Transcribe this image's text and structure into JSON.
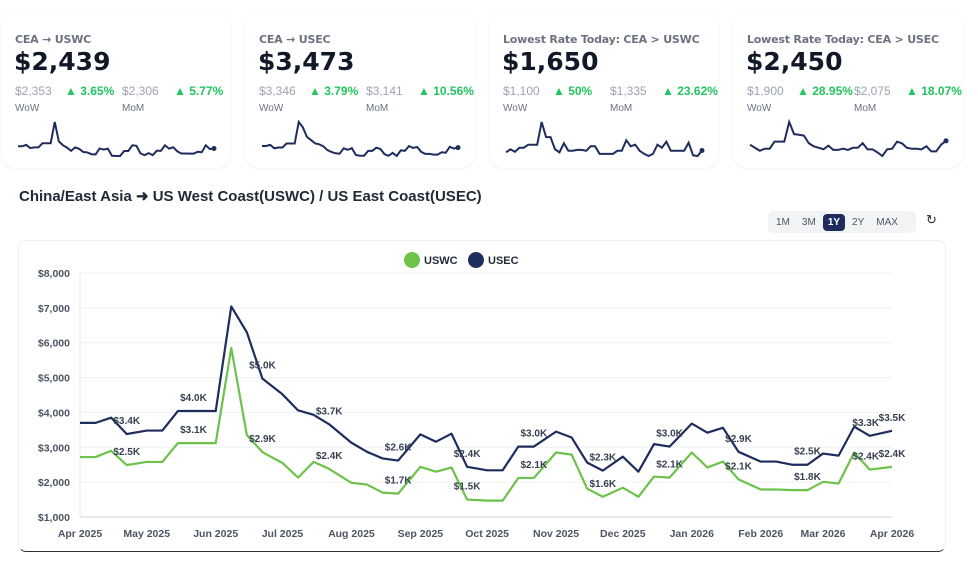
{
  "cards": [
    {
      "title": "CEA → USWC",
      "value": "$2,439",
      "wow_prev": "$2,353",
      "wow_change": "▲ 3.65%",
      "mom_prev": "$2,306",
      "mom_change": "▲ 5.77%",
      "wow_label": "WoW",
      "mom_label": "MoM",
      "sparkline": [
        2720,
        2720,
        2900,
        2490,
        2580,
        2580,
        3120,
        3120,
        3120,
        5850,
        3350,
        2860,
        2550,
        2130,
        2580,
        2380,
        1980,
        1930,
        1700,
        1670,
        2440,
        2300,
        2420,
        1500,
        1470,
        1470,
        2120,
        2120,
        2850,
        2790,
        1810,
        1580,
        1840,
        1580,
        2160,
        2130,
        2850,
        2420,
        2590,
        2080,
        1790,
        1790,
        1770,
        1770,
        2010,
        1960,
        2850,
        2360,
        2439
      ]
    },
    {
      "title": "CEA → USEC",
      "value": "$3,473",
      "wow_prev": "$3,346",
      "wow_change": "▲ 3.79%",
      "mom_prev": "$3,141",
      "mom_change": "▲ 10.56%",
      "wow_label": "WoW",
      "mom_label": "MoM",
      "sparkline": [
        3700,
        3700,
        3850,
        3380,
        3480,
        3480,
        4040,
        4040,
        4040,
        7040,
        6300,
        4970,
        4520,
        4060,
        3930,
        3660,
        3130,
        2870,
        2680,
        2620,
        3370,
        3160,
        3390,
        2440,
        2340,
        2340,
        3020,
        3020,
        3450,
        3280,
        2560,
        2330,
        2730,
        2300,
        3090,
        3020,
        3680,
        3420,
        3560,
        2870,
        2590,
        2590,
        2500,
        2500,
        2820,
        2760,
        3590,
        3330,
        3473
      ]
    },
    {
      "title": "Lowest Rate Today: CEA > USWC",
      "value": "$1,650",
      "wow_prev": "$1,100",
      "wow_change": "▲ 50%",
      "mom_prev": "$1,335",
      "mom_change": "▲ 23.62%",
      "wow_label": "WoW",
      "mom_label": "MoM",
      "sparkline": [
        1500,
        1750,
        1550,
        1880,
        1880,
        2130,
        2130,
        2130,
        4000,
        2750,
        2750,
        1750,
        1500,
        2250,
        1630,
        1630,
        1700,
        1700,
        1630,
        2000,
        2000,
        1380,
        1380,
        1380,
        1380,
        1630,
        1630,
        2500,
        2000,
        2130,
        1630,
        1380,
        1200,
        1380,
        2130,
        1880,
        2380,
        1630,
        1630,
        1630,
        1630,
        2300,
        1250,
        1200,
        1650
      ]
    },
    {
      "title": "Lowest Rate Today: CEA > USEC",
      "value": "$2,450",
      "wow_prev": "$1,900",
      "wow_change": "▲ 28.95%",
      "mom_prev": "$2,075",
      "mom_change": "▲ 18.07%",
      "wow_label": "WoW",
      "mom_label": "MoM",
      "sparkline": [
        2130,
        1880,
        1630,
        1800,
        1800,
        2380,
        2380,
        2380,
        4000,
        3000,
        2950,
        2880,
        2250,
        2000,
        1880,
        1750,
        2050,
        1700,
        1700,
        1800,
        1700,
        1880,
        1880,
        2250,
        1750,
        1750,
        1500,
        1200,
        1750,
        1800,
        2380,
        2250,
        1880,
        1800,
        1800,
        1750,
        2000,
        1580,
        1580,
        2130,
        2450
      ]
    }
  ],
  "section_title": "China/East Asia ➜ US West Coast(USWC) / US East Coast(USEC)",
  "range_buttons": [
    {
      "label": "1M",
      "active": false
    },
    {
      "label": "3M",
      "active": false
    },
    {
      "label": "1Y",
      "active": true
    },
    {
      "label": "2Y",
      "active": false
    },
    {
      "label": "MAX",
      "active": false
    }
  ],
  "reset_icon": "↻",
  "colors": {
    "uswc": "#6cc24a",
    "usec": "#1e2d5e",
    "active_range": "#1e2d5e",
    "up": "#22c55e"
  },
  "chart_data": {
    "type": "line",
    "legend": [
      "USWC",
      "USEC"
    ],
    "legend_placement": "top-center",
    "grid": true,
    "ylim": [
      1000,
      8000
    ],
    "yticks": [
      "$1,000",
      "$2,000",
      "$3,000",
      "$4,000",
      "$5,000",
      "$6,000",
      "$7,000",
      "$8,000"
    ],
    "xticks": [
      {
        "date": "2025-04-01",
        "label": "Apr 2025"
      },
      {
        "date": "2025-05-01",
        "label": "May 2025"
      },
      {
        "date": "2025-06-01",
        "label": "Jun 2025"
      },
      {
        "date": "2025-07-01",
        "label": "Jul 2025"
      },
      {
        "date": "2025-08-01",
        "label": "Aug 2025"
      },
      {
        "date": "2025-09-01",
        "label": "Sep 2025"
      },
      {
        "date": "2025-10-01",
        "label": "Oct 2025"
      },
      {
        "date": "2025-11-01",
        "label": "Nov 2025"
      },
      {
        "date": "2025-12-01",
        "label": "Dec 2025"
      },
      {
        "date": "2026-01-01",
        "label": "Jan 2026"
      },
      {
        "date": "2026-02-01",
        "label": "Feb 2026"
      },
      {
        "date": "2026-03-01",
        "label": "Mar 2026"
      },
      {
        "date": "2026-04-01",
        "label": "Apr 2026"
      }
    ],
    "x": [
      "2025-04-01",
      "2025-04-08",
      "2025-04-15",
      "2025-04-22",
      "2025-05-01",
      "2025-05-08",
      "2025-05-15",
      "2025-05-22",
      "2025-06-01",
      "2025-06-08",
      "2025-06-15",
      "2025-06-22",
      "2025-07-01",
      "2025-07-08",
      "2025-07-15",
      "2025-07-22",
      "2025-08-01",
      "2025-08-08",
      "2025-08-15",
      "2025-08-22",
      "2025-09-01",
      "2025-09-08",
      "2025-09-15",
      "2025-09-22",
      "2025-10-01",
      "2025-10-08",
      "2025-10-15",
      "2025-10-22",
      "2025-11-01",
      "2025-11-08",
      "2025-11-15",
      "2025-11-22",
      "2025-12-01",
      "2025-12-08",
      "2025-12-15",
      "2025-12-22",
      "2026-01-01",
      "2026-01-08",
      "2026-01-15",
      "2026-01-22",
      "2026-02-01",
      "2026-02-08",
      "2026-02-15",
      "2026-02-22",
      "2026-03-01",
      "2026-03-08",
      "2026-03-15",
      "2026-03-22",
      "2026-04-01"
    ],
    "series": [
      {
        "name": "USWC",
        "color": "#6cc24a",
        "values": [
          2720,
          2720,
          2900,
          2490,
          2580,
          2580,
          3120,
          3120,
          3120,
          5850,
          3350,
          2860,
          2550,
          2130,
          2580,
          2380,
          1980,
          1930,
          1700,
          1670,
          2440,
          2300,
          2420,
          1500,
          1470,
          1470,
          2120,
          2120,
          2850,
          2790,
          1810,
          1580,
          1840,
          1580,
          2160,
          2130,
          2850,
          2420,
          2590,
          2080,
          1790,
          1790,
          1770,
          1770,
          2010,
          1960,
          2850,
          2360,
          2439
        ],
        "data_labels": [
          "$2.5K",
          "$3.1K",
          "$2.9K",
          "$2.4K",
          "$1.7K",
          "$1.5K",
          "$2.1K",
          "$1.6K",
          "$2.1K",
          "$2.1K",
          "$1.8K",
          "$2.4K",
          "$2.4K"
        ]
      },
      {
        "name": "USEC",
        "color": "#1e2d5e",
        "values": [
          3700,
          3700,
          3850,
          3380,
          3480,
          3480,
          4040,
          4040,
          4040,
          7040,
          6300,
          4970,
          4520,
          4060,
          3930,
          3660,
          3130,
          2870,
          2680,
          2620,
          3370,
          3160,
          3390,
          2440,
          2340,
          2340,
          3020,
          3020,
          3450,
          3280,
          2560,
          2330,
          2730,
          2300,
          3090,
          3020,
          3680,
          3420,
          3560,
          2870,
          2590,
          2590,
          2500,
          2500,
          2820,
          2760,
          3590,
          3330,
          3473
        ],
        "data_labels": [
          "$3.4K",
          "$4.0K",
          "$5.0K",
          "$3.7K",
          "$2.6K",
          "$2.4K",
          "$3.0K",
          "$2.3K",
          "$3.0K",
          "$2.9K",
          "$2.5K",
          "$3.3K",
          "$3.5K"
        ]
      }
    ]
  }
}
